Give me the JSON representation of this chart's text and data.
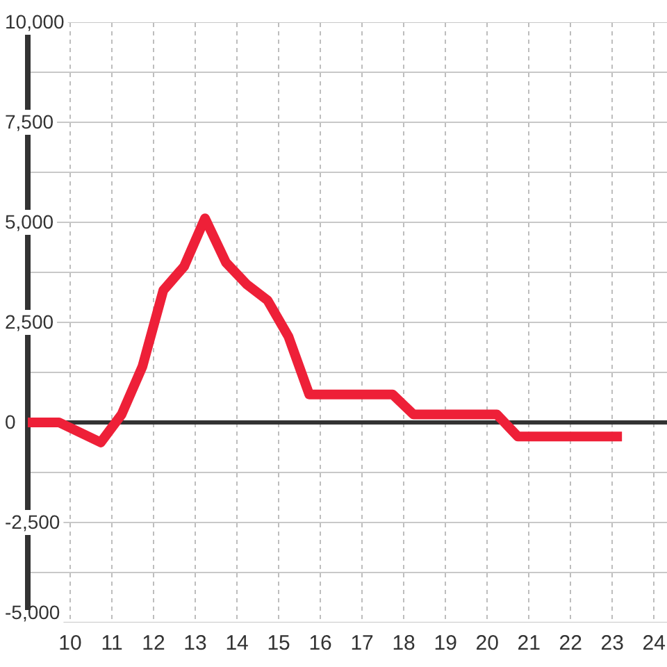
{
  "chart_data": {
    "type": "line",
    "x": [
      9,
      9.75,
      10.75,
      11.25,
      11.75,
      12.25,
      12.75,
      13.25,
      13.75,
      14.25,
      14.75,
      15.25,
      15.75,
      17.75,
      18.25,
      20.25,
      20.75,
      23.25
    ],
    "series": [
      {
        "color": "#ee2038",
        "values": [
          0,
          0,
          -500,
          200,
          1400,
          3300,
          3900,
          5100,
          4000,
          3450,
          3050,
          2150,
          700,
          700,
          200,
          200,
          -350,
          -350
        ]
      }
    ],
    "xlim": [
      9,
      24.33
    ],
    "xticks": [
      10,
      11,
      12,
      13,
      14,
      15,
      16,
      17,
      18,
      19,
      20,
      21,
      22,
      23,
      24
    ],
    "ylim": [
      -5000,
      10000
    ],
    "yticks": [
      {
        "value": -5000,
        "label": "-5,000"
      },
      {
        "value": -3750,
        "label": null
      },
      {
        "value": -2500,
        "label": "-2,500"
      },
      {
        "value": -1250,
        "label": null
      },
      0,
      {
        "value": 1250,
        "label": null
      },
      {
        "value": 2500,
        "label": "2,500"
      },
      {
        "value": 3750,
        "label": null
      },
      {
        "value": 5000,
        "label": "5,000"
      },
      {
        "value": 6250,
        "label": null
      },
      {
        "value": 7500,
        "label": "7,500"
      },
      {
        "value": 8750,
        "label": null
      },
      {
        "value": 10000,
        "label": "10,000"
      }
    ],
    "grid": true,
    "line_style": "solid",
    "ref_lines": [
      {
        "axis": "y",
        "value": 0,
        "color": "#333333"
      }
    ]
  }
}
